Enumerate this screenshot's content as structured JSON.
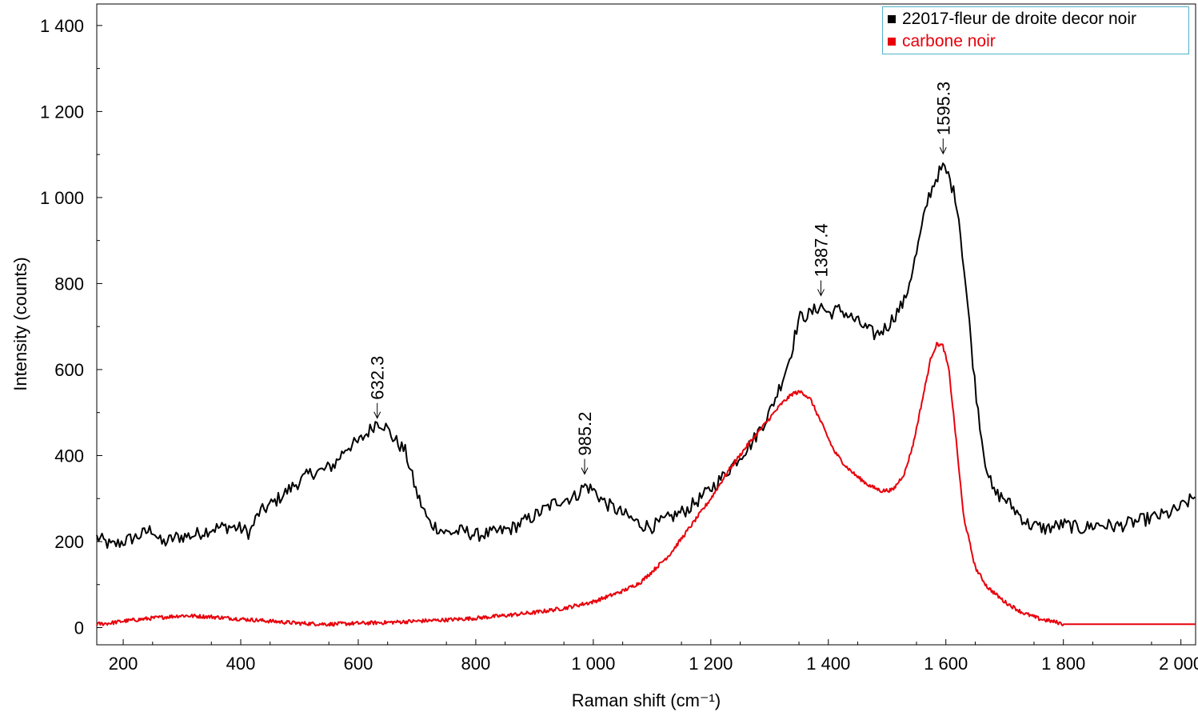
{
  "chart_data": {
    "type": "line",
    "xlabel": "Raman shift (cm⁻¹)",
    "ylabel": "Intensity (counts)",
    "xlim": [
      155,
      2025
    ],
    "ylim": [
      -40,
      1450
    ],
    "x_ticks": [
      200,
      400,
      600,
      800,
      1000,
      1200,
      1400,
      1600,
      1800,
      2000
    ],
    "x_tick_labels": [
      "200",
      "400",
      "600",
      "800",
      "1 000",
      "1 200",
      "1 400",
      "1 600",
      "1 800",
      "2 000"
    ],
    "y_ticks": [
      0,
      200,
      400,
      600,
      800,
      1000,
      1200,
      1400
    ],
    "y_tick_labels": [
      "0",
      "200",
      "400",
      "600",
      "800",
      "1 000",
      "1 200",
      "1 400"
    ],
    "grid": false,
    "legend_position": "top-right",
    "series": [
      {
        "name": "22017-fleur de droite decor noir",
        "color": "#000000",
        "x": [
          155,
          180,
          200,
          230,
          250,
          265,
          290,
          320,
          350,
          380,
          400,
          415,
          430,
          460,
          490,
          520,
          540,
          560,
          580,
          600,
          620,
          632,
          645,
          660,
          680,
          700,
          720,
          750,
          780,
          800,
          830,
          860,
          900,
          940,
          970,
          985,
          1000,
          1020,
          1050,
          1080,
          1100,
          1130,
          1160,
          1190,
          1220,
          1250,
          1270,
          1300,
          1320,
          1335,
          1350,
          1370,
          1387,
          1400,
          1420,
          1440,
          1460,
          1480,
          1500,
          1515,
          1530,
          1550,
          1570,
          1585,
          1595,
          1605,
          1620,
          1635,
          1650,
          1665,
          1680,
          1700,
          1720,
          1740,
          1770,
          1800,
          1830,
          1860,
          1890,
          1920,
          1950,
          1980,
          2000,
          2025
        ],
        "y": [
          210,
          190,
          200,
          215,
          230,
          195,
          210,
          215,
          230,
          235,
          230,
          220,
          265,
          295,
          330,
          360,
          365,
          380,
          420,
          430,
          460,
          480,
          470,
          440,
          410,
          310,
          245,
          220,
          225,
          215,
          220,
          230,
          260,
          295,
          305,
          330,
          320,
          290,
          265,
          240,
          235,
          255,
          275,
          310,
          350,
          400,
          430,
          500,
          570,
          630,
          720,
          730,
          750,
          730,
          740,
          720,
          700,
          680,
          700,
          730,
          760,
          870,
          1000,
          1050,
          1070,
          1050,
          980,
          780,
          560,
          400,
          315,
          300,
          270,
          240,
          230,
          240,
          230,
          240,
          235,
          245,
          255,
          265,
          280,
          305
        ]
      },
      {
        "name": "carbone noir",
        "color": "#e8000b",
        "x": [
          155,
          175,
          200,
          250,
          300,
          350,
          400,
          450,
          500,
          550,
          600,
          650,
          700,
          750,
          800,
          850,
          900,
          950,
          1000,
          1050,
          1080,
          1100,
          1130,
          1160,
          1200,
          1230,
          1260,
          1290,
          1320,
          1340,
          1355,
          1370,
          1390,
          1410,
          1430,
          1450,
          1470,
          1490,
          1510,
          1530,
          1545,
          1560,
          1575,
          1585,
          1595,
          1605,
          1615,
          1630,
          1650,
          1670,
          1700,
          1730,
          1760,
          1790,
          1800,
          2025
        ],
        "y": [
          8,
          10,
          15,
          22,
          28,
          25,
          20,
          15,
          10,
          8,
          10,
          12,
          15,
          18,
          22,
          28,
          35,
          45,
          60,
          85,
          105,
          130,
          170,
          225,
          300,
          365,
          420,
          470,
          520,
          545,
          548,
          530,
          470,
          410,
          375,
          350,
          330,
          318,
          320,
          360,
          430,
          530,
          630,
          660,
          655,
          600,
          470,
          260,
          140,
          95,
          60,
          35,
          20,
          12,
          8,
          8
        ]
      }
    ],
    "annotations": [
      {
        "label": "632.3",
        "x": 632.3,
        "y": 485
      },
      {
        "label": "985.2",
        "x": 985.2,
        "y": 355
      },
      {
        "label": "1387.4",
        "x": 1387.4,
        "y": 770
      },
      {
        "label": "1595.3",
        "x": 1595.3,
        "y": 1100
      }
    ]
  }
}
